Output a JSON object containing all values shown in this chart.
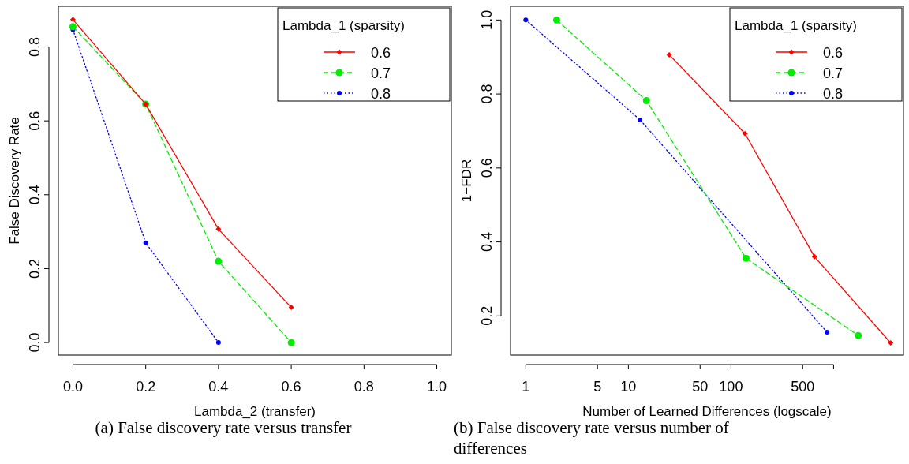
{
  "chart_data": [
    {
      "type": "line",
      "xlabel": "Lambda_2 (transfer)",
      "ylabel": "False Discovery Rate",
      "legend_title": "Lambda_1 (sparsity)",
      "legend": "top right",
      "annotations": [
        "(a) False discovery rate versus transfer"
      ],
      "x": [
        0,
        0.2,
        0.4,
        0.6
      ],
      "xlim": [
        -0.04,
        1.04
      ],
      "xticks": [
        {
          "value": 0,
          "label": "0.0"
        },
        0.2,
        0.4,
        0.6,
        0.8,
        {
          "value": 1,
          "label": "1.0"
        }
      ],
      "ylim": [
        -0.034,
        0.91
      ],
      "yticks": [
        {
          "value": 0,
          "label": "0.0"
        },
        0.2,
        0.4,
        0.6,
        0.8
      ],
      "series": [
        {
          "name": "0.6",
          "color": "#ff0000",
          "marker": "diamond",
          "line_style": "solid",
          "values": [
            0.874,
            0.645,
            0.307,
            0.095
          ]
        },
        {
          "name": "0.7",
          "color": "#00ee00",
          "marker": "circle",
          "line_style": "dashed",
          "values": [
            0.855,
            0.645,
            0.22,
            0
          ]
        },
        {
          "name": "0.8",
          "color": "#0000ff",
          "marker": "circle",
          "line_style": "dotted",
          "x": [
            0,
            0.2,
            0.4
          ],
          "values": [
            0.847,
            0.27,
            0
          ]
        }
      ]
    },
    {
      "type": "line",
      "xlabel": "Number of Learned Differences (logscale)",
      "ylabel": "1−FDR",
      "legend_title": "Lambda_1 (sparsity)",
      "legend": "top right",
      "log": "x",
      "annotations": [
        "(b) False discovery rate versus number of differences"
      ],
      "xlim": [
        0.71,
        4800
      ],
      "xticks": [
        1,
        5,
        10,
        50,
        100,
        500,
        {
          "value": 1000,
          "label": null
        }
      ],
      "ylim": [
        0.094,
        1.037
      ],
      "yticks": [
        0.2,
        0.4,
        0.6,
        0.8,
        {
          "value": 1,
          "label": "1.0"
        }
      ],
      "series": [
        {
          "name": "0.6",
          "color": "#ff0000",
          "marker": "diamond",
          "line_style": "solid",
          "x": [
            25,
            137,
            652,
            3600
          ],
          "values": [
            0.906,
            0.693,
            0.36,
            0.127
          ]
        },
        {
          "name": "0.7",
          "color": "#00ee00",
          "marker": "circle",
          "line_style": "dashed",
          "x": [
            2,
            15,
            140,
            1740
          ],
          "values": [
            1.0,
            0.782,
            0.356,
            0.147
          ]
        },
        {
          "name": "0.8",
          "color": "#0000ff",
          "marker": "circle",
          "line_style": "dotted",
          "x": [
            1,
            13,
            863
          ],
          "values": [
            1.0,
            0.73,
            0.156
          ]
        }
      ]
    }
  ]
}
